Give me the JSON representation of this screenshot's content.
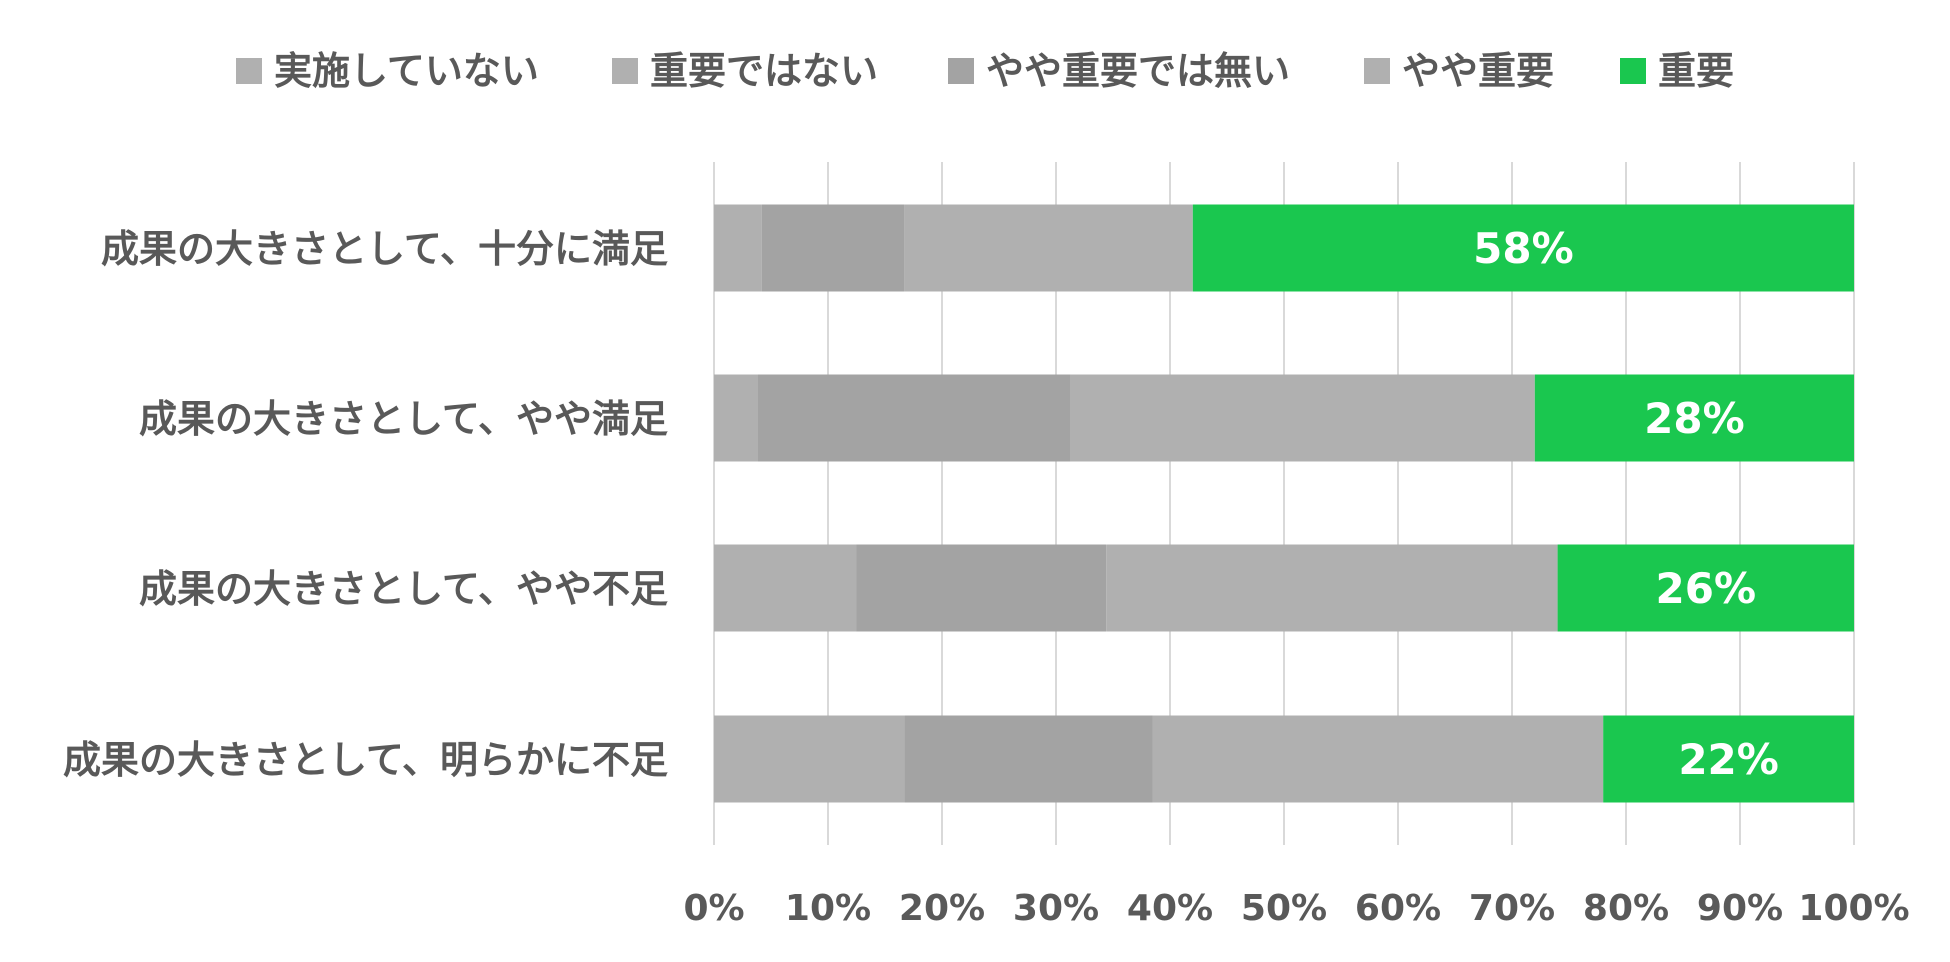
{
  "chart_data": {
    "type": "bar",
    "orientation": "horizontal",
    "stacked": true,
    "percent_stacked": true,
    "legend_position": "top",
    "grid": "vertical",
    "xlim": [
      0,
      100
    ],
    "x_ticks": [
      "0%",
      "10%",
      "20%",
      "30%",
      "40%",
      "50%",
      "60%",
      "70%",
      "80%",
      "90%",
      "100%"
    ],
    "categories": [
      "成果の大きさとして、十分に満足",
      "成果の大きさとして、やや満足",
      "成果の大きさとして、やや不足",
      "成果の大きさとして、明らかに不足"
    ],
    "series": [
      {
        "name": "実施していない",
        "color": "#b0b0b0",
        "values": [
          0,
          0,
          0,
          0
        ]
      },
      {
        "name": "重要ではない",
        "color": "#b0b0b0",
        "values": [
          4.2,
          3.8,
          12.5,
          16.7
        ]
      },
      {
        "name": "やや重要では無い",
        "color": "#a3a3a3",
        "values": [
          12.5,
          27.5,
          21.9,
          21.8
        ]
      },
      {
        "name": "やや重要",
        "color": "#b0b0b0",
        "values": [
          25.3,
          40.7,
          39.6,
          39.5
        ]
      },
      {
        "name": "重要",
        "color": "#1ac74f",
        "values": [
          58,
          28,
          26,
          22
        ],
        "labels": [
          "58%",
          "28%",
          "26%",
          "22%"
        ]
      }
    ]
  }
}
